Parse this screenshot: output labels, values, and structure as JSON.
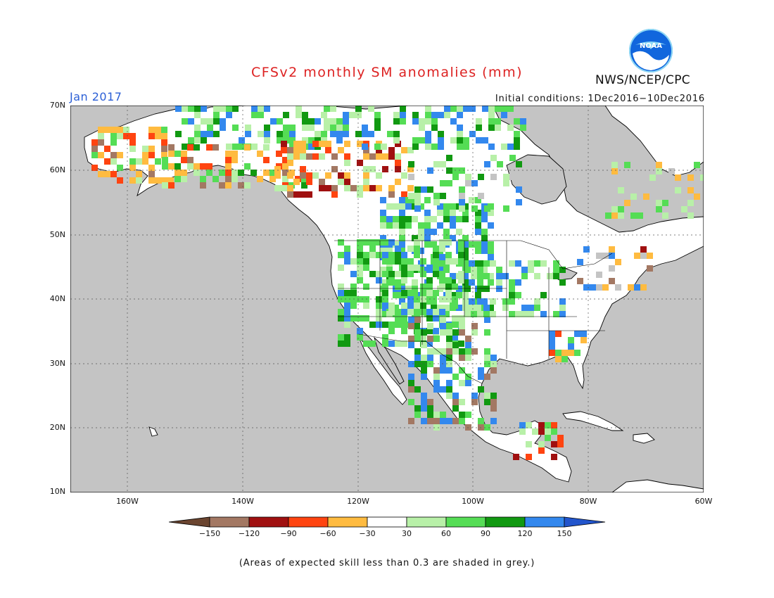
{
  "title": "CFSv2 monthly SM anomalies (mm)",
  "month": "Jan 2017",
  "initial_conditions": "Initial conditions: 1Dec2016−10Dec2016",
  "agency": "NWS/NCEP/CPC",
  "logo_text": "NOAA",
  "note": "(Areas of expected skill less than 0.3 are shaded in grey.)",
  "lat_labels": [
    "70N",
    "60N",
    "50N",
    "40N",
    "30N",
    "20N",
    "10N"
  ],
  "lon_labels": [
    "160W",
    "140W",
    "120W",
    "100W",
    "80W",
    "60W"
  ],
  "colorbar": {
    "labels": [
      "−150",
      "−120",
      "−90",
      "−60",
      "−30",
      "30",
      "60",
      "90",
      "120",
      "150"
    ],
    "colors": [
      "#6b4530",
      "#a37863",
      "#a01010",
      "#ff4410",
      "#ffbb40",
      "#ffffff",
      "#b8f0a8",
      "#55dd55",
      "#119911",
      "#3388ee",
      "#2255cc"
    ]
  },
  "colors": {
    "no_skill": "#c4c4c4",
    "title": "#dd2222",
    "month": "#2b5fd6"
  }
}
